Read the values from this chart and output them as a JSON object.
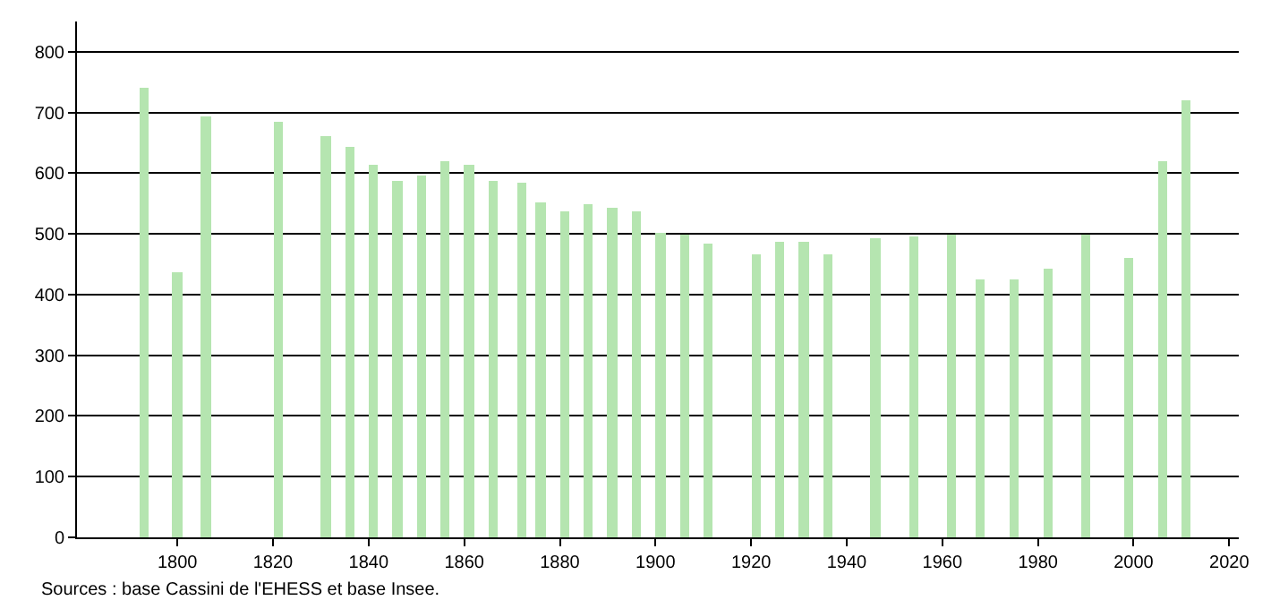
{
  "chart_data": {
    "type": "bar",
    "x": [
      1793,
      1800,
      1806,
      1821,
      1831,
      1836,
      1841,
      1846,
      1851,
      1856,
      1861,
      1866,
      1872,
      1876,
      1881,
      1886,
      1891,
      1896,
      1901,
      1906,
      1911,
      1921,
      1926,
      1931,
      1936,
      1946,
      1954,
      1962,
      1968,
      1975,
      1982,
      1990,
      1999,
      2006,
      2011
    ],
    "values": [
      741,
      438,
      694,
      685,
      662,
      644,
      615,
      588,
      597,
      620,
      615,
      588,
      585,
      553,
      538,
      550,
      544,
      538,
      503,
      500,
      485,
      465,
      488,
      488,
      465,
      494,
      497,
      500,
      426,
      426,
      444,
      500,
      459,
      620,
      720
    ],
    "color": "#b5e5b0",
    "xlim": [
      1779,
      2022
    ],
    "xticks": [
      1800,
      1820,
      1840,
      1860,
      1880,
      1900,
      1920,
      1940,
      1960,
      1980,
      2000,
      2020
    ],
    "ylim": [
      0,
      850
    ],
    "yticks": [
      0,
      100,
      200,
      300,
      400,
      500,
      600,
      700,
      800
    ],
    "grid": "y",
    "annotations": [
      "Sources : base Cassini de l'EHESS et base Insee."
    ]
  }
}
